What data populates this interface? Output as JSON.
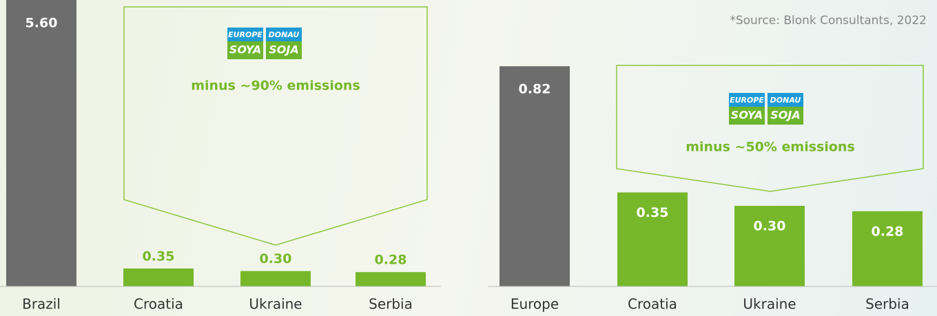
{
  "source": "*Source: Blonk Consultants, 2022",
  "chart_data": [
    {
      "type": "bar",
      "categories": [
        "Brazil",
        "Croatia",
        "Ukraine",
        "Serbia"
      ],
      "values": [
        5.6,
        0.35,
        0.3,
        0.28
      ],
      "value_labels": [
        "5.60",
        "0.35",
        "0.30",
        "0.28"
      ],
      "colors": [
        "#6d6d6d",
        "#76b82a",
        "#76b82a",
        "#76b82a"
      ],
      "ylim": [
        0,
        5.6
      ],
      "annotation": "minus ~90% emissions",
      "logo": [
        "EUROPE",
        "SOYA",
        "DONAU",
        "SOJA"
      ]
    },
    {
      "type": "bar",
      "categories": [
        "Europe",
        "Croatia",
        "Ukraine",
        "Serbia"
      ],
      "values": [
        0.82,
        0.35,
        0.3,
        0.28
      ],
      "value_labels": [
        "0.82",
        "0.35",
        "0.30",
        "0.28"
      ],
      "colors": [
        "#6d6d6d",
        "#76b82a",
        "#76b82a",
        "#76b82a"
      ],
      "ylim": [
        0,
        1
      ],
      "annotation": "minus ~50% emissions",
      "logo": [
        "EUROPE",
        "SOYA",
        "DONAU",
        "SOJA"
      ]
    }
  ]
}
